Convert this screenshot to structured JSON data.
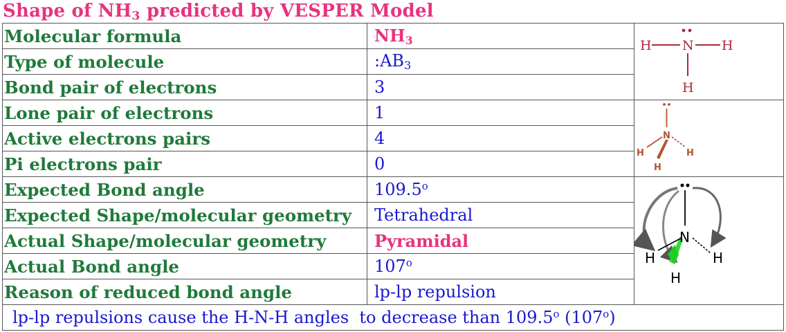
{
  "title": "Shape of NH₃ predicted by VESPER Model",
  "rows": [
    {
      "label": "Molecular formula",
      "value": "NH₃"
    },
    {
      "label": "Type of molecule",
      "value": ":AB₃"
    },
    {
      "label": "Bond pair of electrons",
      "value": "3"
    },
    {
      "label": "Lone pair of electrons",
      "value": "1"
    },
    {
      "label": "Active electrons pairs",
      "value": "4"
    },
    {
      "label": "Pi electrons pair",
      "value": "0"
    },
    {
      "label": "Expected Bond angle",
      "value": "109.5°"
    },
    {
      "label": "Expected Shape/molecular geometry",
      "value": "Tetrahedral"
    },
    {
      "label": "Actual Shape/molecular geometry",
      "value": "Pyramidal"
    },
    {
      "label": "Actual Bond angle",
      "value": "107°"
    },
    {
      "label": "Reason of reduced bond angle",
      "value": "lp-lp repulsion"
    }
  ],
  "footer": "lp-lp repulsions cause the H-N-H angles  to decrease than 109.5° (107°)",
  "diagrams": {
    "lewis": {
      "central": "N",
      "atoms": [
        "H",
        "H",
        "H"
      ]
    },
    "wedge": {
      "central": "N",
      "atoms": [
        "H",
        "H",
        "H"
      ]
    },
    "repulsion": {
      "central": "N",
      "atoms": [
        "H",
        "H",
        "H"
      ]
    }
  },
  "colors": {
    "title": "#e8327f",
    "label": "#1f7a3a",
    "value": "#1818d0",
    "highlight": "#e8327f",
    "lewis": "#b0293a",
    "wedge": "#b4532e"
  }
}
